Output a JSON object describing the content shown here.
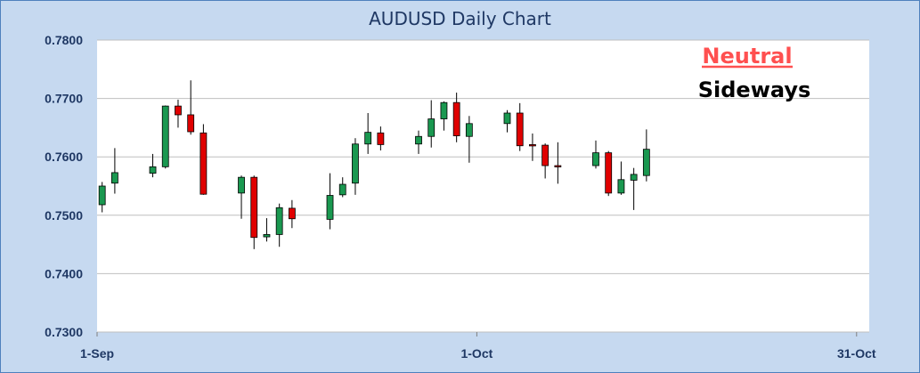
{
  "chart_data": {
    "type": "candlestick",
    "title": "AUDUSD Daily Chart",
    "ylim": [
      0.73,
      0.78
    ],
    "yticks": [
      "0.7300",
      "0.7400",
      "0.7500",
      "0.7600",
      "0.7700",
      "0.7800"
    ],
    "ytick_values": [
      0.73,
      0.74,
      0.75,
      0.76,
      0.77,
      0.78
    ],
    "xticks": [
      "1-Sep",
      "1-Oct",
      "31-Oct"
    ],
    "xtick_days": [
      0,
      30,
      60
    ],
    "xlim_days": [
      0,
      61
    ],
    "grid": true,
    "annotations": [
      {
        "text": "Neutral",
        "color": "#ff5050",
        "underline": true
      },
      {
        "text": "Sideways",
        "color": "#000000",
        "underline": false
      }
    ],
    "colors": {
      "up": "#1a9850",
      "down": "#e00000",
      "wick": "#000000",
      "grid": "#bfbfbf",
      "axis_text": "#1f3864"
    },
    "candles": [
      {
        "day": 0.4,
        "open": 0.7518,
        "high": 0.7557,
        "low": 0.7505,
        "close": 0.755
      },
      {
        "day": 1.4,
        "open": 0.7555,
        "high": 0.7615,
        "low": 0.7537,
        "close": 0.7573
      },
      {
        "day": 4.4,
        "open": 0.7572,
        "high": 0.7605,
        "low": 0.7565,
        "close": 0.7583
      },
      {
        "day": 5.4,
        "open": 0.7583,
        "high": 0.7688,
        "low": 0.758,
        "close": 0.7687
      },
      {
        "day": 6.4,
        "open": 0.7687,
        "high": 0.7698,
        "low": 0.765,
        "close": 0.7672
      },
      {
        "day": 7.4,
        "open": 0.7672,
        "high": 0.7731,
        "low": 0.7638,
        "close": 0.7643
      },
      {
        "day": 8.4,
        "open": 0.7641,
        "high": 0.7656,
        "low": 0.7535,
        "close": 0.7536
      },
      {
        "day": 11.4,
        "open": 0.7538,
        "high": 0.7568,
        "low": 0.7494,
        "close": 0.7565
      },
      {
        "day": 12.4,
        "open": 0.7565,
        "high": 0.7568,
        "low": 0.7442,
        "close": 0.7462
      },
      {
        "day": 13.4,
        "open": 0.7463,
        "high": 0.7495,
        "low": 0.7455,
        "close": 0.7467
      },
      {
        "day": 14.4,
        "open": 0.7467,
        "high": 0.752,
        "low": 0.7446,
        "close": 0.7513
      },
      {
        "day": 15.4,
        "open": 0.7512,
        "high": 0.7526,
        "low": 0.7478,
        "close": 0.7494
      },
      {
        "day": 18.4,
        "open": 0.7493,
        "high": 0.7572,
        "low": 0.7476,
        "close": 0.7534
      },
      {
        "day": 19.4,
        "open": 0.7535,
        "high": 0.7565,
        "low": 0.7531,
        "close": 0.7553
      },
      {
        "day": 20.4,
        "open": 0.7555,
        "high": 0.7632,
        "low": 0.7535,
        "close": 0.7622
      },
      {
        "day": 21.4,
        "open": 0.7622,
        "high": 0.7675,
        "low": 0.7605,
        "close": 0.7642
      },
      {
        "day": 22.4,
        "open": 0.7641,
        "high": 0.7652,
        "low": 0.7611,
        "close": 0.7621
      },
      {
        "day": 25.4,
        "open": 0.7622,
        "high": 0.7645,
        "low": 0.7605,
        "close": 0.7635
      },
      {
        "day": 26.4,
        "open": 0.7635,
        "high": 0.7697,
        "low": 0.7616,
        "close": 0.7665
      },
      {
        "day": 27.4,
        "open": 0.7665,
        "high": 0.7695,
        "low": 0.7645,
        "close": 0.7693
      },
      {
        "day": 28.4,
        "open": 0.7693,
        "high": 0.771,
        "low": 0.7625,
        "close": 0.7636
      },
      {
        "day": 29.4,
        "open": 0.7635,
        "high": 0.767,
        "low": 0.759,
        "close": 0.7657
      },
      {
        "day": 32.4,
        "open": 0.7657,
        "high": 0.768,
        "low": 0.7642,
        "close": 0.7675
      },
      {
        "day": 33.4,
        "open": 0.7675,
        "high": 0.7692,
        "low": 0.761,
        "close": 0.7619
      },
      {
        "day": 34.4,
        "open": 0.7621,
        "high": 0.764,
        "low": 0.7593,
        "close": 0.7619
      },
      {
        "day": 35.4,
        "open": 0.762,
        "high": 0.7623,
        "low": 0.7563,
        "close": 0.7585
      },
      {
        "day": 36.4,
        "open": 0.7585,
        "high": 0.7625,
        "low": 0.7554,
        "close": 0.7584
      },
      {
        "day": 39.4,
        "open": 0.7585,
        "high": 0.7628,
        "low": 0.758,
        "close": 0.7607
      },
      {
        "day": 40.4,
        "open": 0.7607,
        "high": 0.761,
        "low": 0.7533,
        "close": 0.7538
      },
      {
        "day": 41.4,
        "open": 0.7538,
        "high": 0.7592,
        "low": 0.7535,
        "close": 0.7561
      },
      {
        "day": 42.4,
        "open": 0.756,
        "high": 0.7581,
        "low": 0.7509,
        "close": 0.757
      },
      {
        "day": 43.4,
        "open": 0.7568,
        "high": 0.7647,
        "low": 0.7558,
        "close": 0.7613
      }
    ]
  }
}
